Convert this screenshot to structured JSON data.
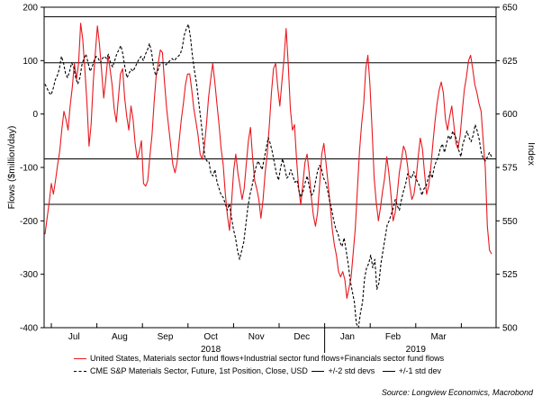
{
  "chart_data": {
    "type": "line",
    "x_tick_labels": [
      "Jul",
      "Aug",
      "Sep",
      "Oct",
      "Nov",
      "Dec",
      "Jan",
      "Feb",
      "Mar"
    ],
    "year_labels": [
      "2018",
      "2019"
    ],
    "y_left": {
      "label": "Flows ($million/day)",
      "lim": [
        -400,
        200
      ],
      "ticks": [
        200,
        100,
        0,
        -100,
        -200,
        -300,
        -400
      ]
    },
    "y_right": {
      "label": "Index",
      "lim": [
        500,
        650
      ],
      "ticks": [
        650,
        625,
        600,
        575,
        550,
        525,
        500
      ]
    },
    "series": [
      {
        "name": "United States, Materials sector fund flows+Industrial sector fund flows+Financials sector fund flows",
        "axis": "left",
        "color": "#e8181e",
        "style": "solid",
        "values": [
          -225,
          -195,
          -165,
          -130,
          -150,
          -125,
          -95,
          -70,
          -30,
          5,
          -10,
          -30,
          15,
          50,
          95,
          65,
          95,
          170,
          140,
          85,
          20,
          -60,
          -20,
          60,
          115,
          165,
          130,
          80,
          30,
          65,
          110,
          85,
          55,
          10,
          -15,
          30,
          75,
          85,
          30,
          -5,
          -30,
          15,
          -10,
          -55,
          -85,
          -70,
          -50,
          -130,
          -135,
          -125,
          -80,
          -40,
          20,
          70,
          95,
          120,
          115,
          60,
          10,
          -25,
          -60,
          -95,
          -110,
          -90,
          -50,
          -10,
          20,
          55,
          75,
          75,
          45,
          10,
          -15,
          -40,
          -75,
          -85,
          -60,
          -20,
          30,
          65,
          95,
          60,
          20,
          -20,
          -65,
          -95,
          -150,
          -190,
          -218,
          -165,
          -105,
          -75,
          -110,
          -135,
          -160,
          -140,
          -95,
          -50,
          -25,
          -80,
          -125,
          -140,
          -160,
          -195,
          -160,
          -110,
          -75,
          -20,
          40,
          85,
          95,
          50,
          15,
          60,
          105,
          160,
          95,
          10,
          -30,
          -20,
          -85,
          -140,
          -170,
          -130,
          -90,
          -75,
          -110,
          -155,
          -190,
          -210,
          -185,
          -130,
          -75,
          -55,
          -90,
          -130,
          -170,
          -215,
          -245,
          -265,
          -295,
          -305,
          -295,
          -310,
          -345,
          -325,
          -305,
          -260,
          -215,
          -140,
          -70,
          -20,
          20,
          85,
          110,
          55,
          -30,
          -120,
          -165,
          -200,
          -175,
          -145,
          -120,
          -80,
          -110,
          -150,
          -200,
          -185,
          -150,
          -110,
          -85,
          -60,
          -70,
          -100,
          -135,
          -160,
          -150,
          -120,
          -80,
          -45,
          -65,
          -110,
          -150,
          -135,
          -100,
          -55,
          -15,
          20,
          45,
          60,
          40,
          -10,
          -30,
          -5,
          15,
          -20,
          -55,
          -65,
          -40,
          5,
          45,
          70,
          100,
          110,
          85,
          55,
          40,
          20,
          5,
          -50,
          -100,
          -210,
          -255,
          -262
        ]
      },
      {
        "name": "CME S&P Materials Sector, Future, 1st Position, Close, USD",
        "axis": "right",
        "color": "#000000",
        "style": "dashed",
        "values": [
          614,
          612,
          610,
          609,
          612,
          616,
          618,
          621,
          627,
          624,
          619,
          617,
          620,
          624,
          622,
          617,
          614,
          617,
          623,
          626,
          628,
          624,
          620,
          622,
          625,
          627,
          626,
          624,
          626,
          627,
          626,
          628,
          624,
          622,
          625,
          628,
          630,
          632,
          628,
          622,
          617,
          619,
          621,
          620,
          622,
          624,
          626,
          627,
          625,
          628,
          630,
          633,
          629,
          622,
          618,
          620,
          623,
          624,
          624,
          623,
          624,
          625,
          626,
          625,
          626,
          627,
          628,
          631,
          637,
          640,
          642,
          636,
          627,
          620,
          614,
          606,
          598,
          589,
          580,
          578,
          578,
          572,
          571,
          574,
          568,
          565,
          562,
          561,
          558,
          555,
          558,
          552,
          546,
          542,
          536,
          532,
          536,
          540,
          548,
          556,
          562,
          566,
          571,
          575,
          578,
          576,
          574,
          579,
          584,
          589,
          586,
          582,
          577,
          572,
          569,
          575,
          579,
          575,
          570,
          571,
          574,
          571,
          568,
          569,
          564,
          561,
          564,
          568,
          571,
          566,
          562,
          563,
          568,
          573,
          576,
          574,
          570,
          568,
          564,
          559,
          555,
          550,
          546,
          544,
          540,
          538,
          542,
          536,
          530,
          522,
          517,
          512,
          502,
          500,
          507,
          512,
          523,
          528,
          530,
          534,
          528,
          532,
          518,
          521,
          530,
          536,
          542,
          548,
          550,
          553,
          556,
          560,
          557,
          555,
          560,
          564,
          567,
          572,
          571,
          570,
          573,
          570,
          568,
          566,
          562,
          565,
          566,
          570,
          573,
          570,
          575,
          578,
          580,
          584,
          586,
          582,
          586,
          590,
          588,
          592,
          590,
          588,
          583,
          580,
          586,
          589,
          592,
          589,
          587,
          590,
          595,
          592,
          588,
          582,
          579,
          578,
          580,
          582,
          580
        ]
      },
      {
        "name": "+/-2 std devs",
        "axis": "left",
        "color": "#000000",
        "style": "solid",
        "constant": [
          182,
          -169
        ]
      },
      {
        "name": "+/-1 std dev",
        "axis": "left",
        "color": "#000000",
        "style": "solid",
        "constant": [
          96,
          -84
        ]
      }
    ]
  },
  "legend": {
    "row1": "United States, Materials sector fund flows+Industrial sector fund flows+Financials sector fund flows",
    "row2a": "CME S&P Materials Sector, Future, 1st Position, Close, USD",
    "row2b": "+/-2 std devs",
    "row2c": "+/-1 std dev"
  },
  "source": "Source: Longview Economics, Macrobond"
}
